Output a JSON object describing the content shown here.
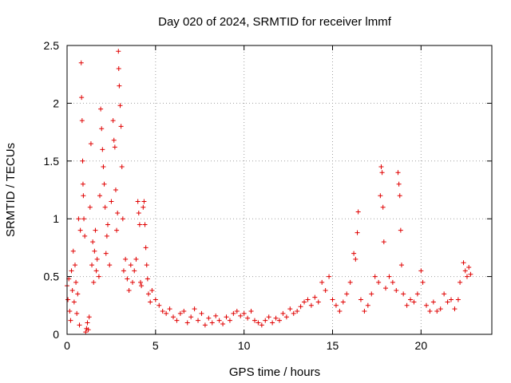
{
  "chart_data": {
    "type": "scatter",
    "title": "Day 020 of 2024, SRMTID for receiver lmmf",
    "xlabel": "GPS time / hours",
    "ylabel": "SRMTID / TECUs",
    "xlim": [
      0,
      24
    ],
    "ylim": [
      0,
      2.5
    ],
    "xticks": [
      0,
      5,
      10,
      15,
      20
    ],
    "yticks": [
      0,
      0.5,
      1,
      1.5,
      2,
      2.5
    ],
    "xtick_labels": [
      "0",
      "5",
      "10",
      "15",
      "20"
    ],
    "ytick_labels": [
      "0",
      "0.5",
      "1",
      "1.5",
      "2",
      "2.5"
    ],
    "grid": true,
    "marker": "+",
    "color": "#e00000",
    "series": [
      {
        "name": "SRMTID",
        "points": [
          [
            0.0,
            0.42
          ],
          [
            0.05,
            0.3
          ],
          [
            0.1,
            0.48
          ],
          [
            0.15,
            0.2
          ],
          [
            0.2,
            0.12
          ],
          [
            0.25,
            0.55
          ],
          [
            0.3,
            0.38
          ],
          [
            0.35,
            0.72
          ],
          [
            0.4,
            0.28
          ],
          [
            0.45,
            0.6
          ],
          [
            0.5,
            0.45
          ],
          [
            0.55,
            0.18
          ],
          [
            0.6,
            0.35
          ],
          [
            0.65,
            1.0
          ],
          [
            0.7,
            0.08
          ],
          [
            0.75,
            0.9
          ],
          [
            0.8,
            2.35
          ],
          [
            0.82,
            2.05
          ],
          [
            0.85,
            1.85
          ],
          [
            0.88,
            1.5
          ],
          [
            0.9,
            1.3
          ],
          [
            0.92,
            1.2
          ],
          [
            0.95,
            1.0
          ],
          [
            1.0,
            0.85
          ],
          [
            1.05,
            0.02
          ],
          [
            1.1,
            0.05
          ],
          [
            1.15,
            0.1
          ],
          [
            1.2,
            0.04
          ],
          [
            1.25,
            0.15
          ],
          [
            1.3,
            1.1
          ],
          [
            1.35,
            1.65
          ],
          [
            1.4,
            0.6
          ],
          [
            1.45,
            0.8
          ],
          [
            1.5,
            0.45
          ],
          [
            1.55,
            0.72
          ],
          [
            1.6,
            0.9
          ],
          [
            1.65,
            0.55
          ],
          [
            1.7,
            0.65
          ],
          [
            1.8,
            0.5
          ],
          [
            1.85,
            1.2
          ],
          [
            1.9,
            1.95
          ],
          [
            1.95,
            1.78
          ],
          [
            2.0,
            1.6
          ],
          [
            2.05,
            1.45
          ],
          [
            2.1,
            1.3
          ],
          [
            2.15,
            1.1
          ],
          [
            2.2,
            0.7
          ],
          [
            2.25,
            0.85
          ],
          [
            2.3,
            0.95
          ],
          [
            2.4,
            0.6
          ],
          [
            2.5,
            1.15
          ],
          [
            2.6,
            1.85
          ],
          [
            2.65,
            1.68
          ],
          [
            2.7,
            1.62
          ],
          [
            2.75,
            1.25
          ],
          [
            2.8,
            0.9
          ],
          [
            2.85,
            1.05
          ],
          [
            2.9,
            2.45
          ],
          [
            2.92,
            2.3
          ],
          [
            2.95,
            2.15
          ],
          [
            3.0,
            1.98
          ],
          [
            3.05,
            1.8
          ],
          [
            3.1,
            1.45
          ],
          [
            3.15,
            1.0
          ],
          [
            3.2,
            0.55
          ],
          [
            3.3,
            0.65
          ],
          [
            3.4,
            0.48
          ],
          [
            3.5,
            0.38
          ],
          [
            3.6,
            0.6
          ],
          [
            3.7,
            0.45
          ],
          [
            3.8,
            0.55
          ],
          [
            3.9,
            0.65
          ],
          [
            4.0,
            1.15
          ],
          [
            4.05,
            1.05
          ],
          [
            4.1,
            0.95
          ],
          [
            4.15,
            0.45
          ],
          [
            4.2,
            0.42
          ],
          [
            4.3,
            1.1
          ],
          [
            4.35,
            1.15
          ],
          [
            4.4,
            0.95
          ],
          [
            4.45,
            0.75
          ],
          [
            4.5,
            0.6
          ],
          [
            4.55,
            0.48
          ],
          [
            4.6,
            0.35
          ],
          [
            4.7,
            0.28
          ],
          [
            4.8,
            0.38
          ],
          [
            5.0,
            0.3
          ],
          [
            5.2,
            0.25
          ],
          [
            5.4,
            0.2
          ],
          [
            5.6,
            0.18
          ],
          [
            5.8,
            0.22
          ],
          [
            6.0,
            0.15
          ],
          [
            6.2,
            0.12
          ],
          [
            6.4,
            0.18
          ],
          [
            6.6,
            0.2
          ],
          [
            6.8,
            0.1
          ],
          [
            7.0,
            0.15
          ],
          [
            7.2,
            0.22
          ],
          [
            7.4,
            0.12
          ],
          [
            7.6,
            0.18
          ],
          [
            7.8,
            0.08
          ],
          [
            8.0,
            0.14
          ],
          [
            8.2,
            0.1
          ],
          [
            8.4,
            0.16
          ],
          [
            8.6,
            0.12
          ],
          [
            8.8,
            0.09
          ],
          [
            9.0,
            0.15
          ],
          [
            9.2,
            0.12
          ],
          [
            9.4,
            0.18
          ],
          [
            9.6,
            0.2
          ],
          [
            9.8,
            0.16
          ],
          [
            10.0,
            0.18
          ],
          [
            10.2,
            0.14
          ],
          [
            10.4,
            0.2
          ],
          [
            10.6,
            0.12
          ],
          [
            10.8,
            0.1
          ],
          [
            11.0,
            0.08
          ],
          [
            11.2,
            0.12
          ],
          [
            11.4,
            0.15
          ],
          [
            11.6,
            0.1
          ],
          [
            11.8,
            0.14
          ],
          [
            12.0,
            0.12
          ],
          [
            12.2,
            0.18
          ],
          [
            12.4,
            0.15
          ],
          [
            12.6,
            0.22
          ],
          [
            12.8,
            0.18
          ],
          [
            13.0,
            0.2
          ],
          [
            13.2,
            0.24
          ],
          [
            13.4,
            0.28
          ],
          [
            13.6,
            0.3
          ],
          [
            13.8,
            0.25
          ],
          [
            14.0,
            0.32
          ],
          [
            14.2,
            0.28
          ],
          [
            14.4,
            0.45
          ],
          [
            14.6,
            0.38
          ],
          [
            14.8,
            0.5
          ],
          [
            15.0,
            0.3
          ],
          [
            15.2,
            0.25
          ],
          [
            15.4,
            0.2
          ],
          [
            15.6,
            0.28
          ],
          [
            15.8,
            0.35
          ],
          [
            16.0,
            0.45
          ],
          [
            16.2,
            0.7
          ],
          [
            16.3,
            0.65
          ],
          [
            16.4,
            0.88
          ],
          [
            16.45,
            1.06
          ],
          [
            16.6,
            0.3
          ],
          [
            16.8,
            0.2
          ],
          [
            17.0,
            0.25
          ],
          [
            17.2,
            0.35
          ],
          [
            17.4,
            0.5
          ],
          [
            17.6,
            0.45
          ],
          [
            17.7,
            1.2
          ],
          [
            17.75,
            1.45
          ],
          [
            17.8,
            1.4
          ],
          [
            17.85,
            1.1
          ],
          [
            17.9,
            0.8
          ],
          [
            18.0,
            0.4
          ],
          [
            18.2,
            0.5
          ],
          [
            18.4,
            0.45
          ],
          [
            18.6,
            0.38
          ],
          [
            18.7,
            1.4
          ],
          [
            18.75,
            1.3
          ],
          [
            18.8,
            1.2
          ],
          [
            18.85,
            0.9
          ],
          [
            18.9,
            0.6
          ],
          [
            19.0,
            0.35
          ],
          [
            19.2,
            0.25
          ],
          [
            19.4,
            0.3
          ],
          [
            19.6,
            0.28
          ],
          [
            19.8,
            0.35
          ],
          [
            20.0,
            0.55
          ],
          [
            20.1,
            0.45
          ],
          [
            20.3,
            0.25
          ],
          [
            20.5,
            0.2
          ],
          [
            20.7,
            0.28
          ],
          [
            20.9,
            0.2
          ],
          [
            21.1,
            0.22
          ],
          [
            21.3,
            0.35
          ],
          [
            21.5,
            0.28
          ],
          [
            21.7,
            0.3
          ],
          [
            21.9,
            0.22
          ],
          [
            22.1,
            0.3
          ],
          [
            22.2,
            0.45
          ],
          [
            22.4,
            0.62
          ],
          [
            22.5,
            0.55
          ],
          [
            22.6,
            0.5
          ],
          [
            22.7,
            0.58
          ],
          [
            22.8,
            0.52
          ]
        ]
      }
    ]
  }
}
